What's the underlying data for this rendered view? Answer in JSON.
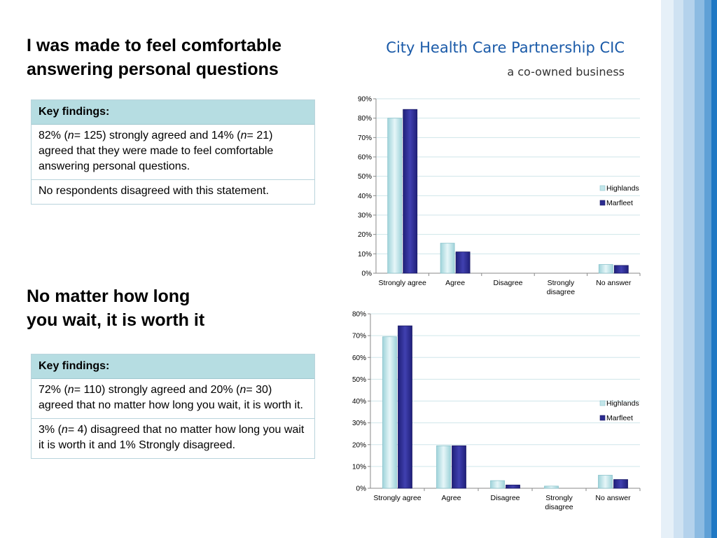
{
  "brand": {
    "title": "City Health Care Partnership CIC",
    "subtitle": "a co-owned business"
  },
  "section1": {
    "heading_line1": "I was made to feel comfortable",
    "heading_line2": "answering personal questions",
    "findings_header": "Key findings:",
    "finding1": "82% (n= 125) strongly agreed and  14% (n= 21) agreed that they were made to feel comfortable answering personal questions.",
    "finding2": "No respondents disagreed with this statement."
  },
  "section2": {
    "heading_line1": "No matter how long",
    "heading_line2": "you wait, it is worth it",
    "findings_header": "Key findings:",
    "finding1": "72% (n= 110) strongly agreed and 20% (n= 30) agreed that no matter how long you wait, it is worth it.",
    "finding2": "3% (n= 4) disagreed that no matter how long you wait it is worth it and 1% Strongly disagreed."
  },
  "colors": {
    "highlands": "#c3e6ea",
    "marfleet": "#2b2b8f",
    "stripes": [
      "#e6f0f8",
      "#cfe2f2",
      "#b4d2ec",
      "#8cbbe2",
      "#5fa0d6",
      "#1f78c4"
    ]
  },
  "chart_data": [
    {
      "type": "bar",
      "categories": [
        "Strongly agree",
        "Agree",
        "Disagree",
        "Strongly disagree",
        "No answer"
      ],
      "series": [
        {
          "name": "Highlands",
          "values": [
            80,
            15.5,
            0,
            0,
            4.5
          ]
        },
        {
          "name": "Marfleet",
          "values": [
            84.5,
            11,
            0,
            0,
            4
          ]
        }
      ],
      "ylim": [
        0,
        90
      ],
      "yticks": [
        "0%",
        "10%",
        "20%",
        "30%",
        "40%",
        "50%",
        "60%",
        "70%",
        "80%",
        "90%"
      ],
      "grid": true,
      "legend": "right"
    },
    {
      "type": "bar",
      "categories": [
        "Strongly agree",
        "Agree",
        "Disagree",
        "Strongly disagree",
        "No answer"
      ],
      "series": [
        {
          "name": "Highlands",
          "values": [
            69.5,
            19.5,
            3.5,
            1,
            6
          ]
        },
        {
          "name": "Marfleet",
          "values": [
            74.5,
            19.5,
            1.5,
            0,
            4
          ]
        }
      ],
      "ylim": [
        0,
        80
      ],
      "yticks": [
        "0%",
        "10%",
        "20%",
        "30%",
        "40%",
        "50%",
        "60%",
        "70%",
        "80%"
      ],
      "grid": true,
      "legend": "right"
    }
  ]
}
